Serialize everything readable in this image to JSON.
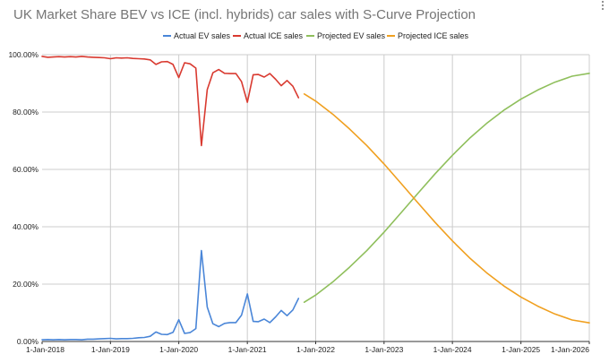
{
  "chart_data": {
    "type": "line",
    "title": "UK Market Share BEV vs ICE (incl. hybrids) car sales with S-Curve Projection",
    "xlabel": "",
    "ylabel": "",
    "x_axis": {
      "type": "date",
      "range": [
        "2018-01-01",
        "2026-01-01"
      ],
      "tick_labels": [
        "1-Jan-2018",
        "1-Jan-2019",
        "1-Jan-2020",
        "1-Jan-2021",
        "1-Jan-2022",
        "1-Jan-2023",
        "1-Jan-2024",
        "1-Jan-2025",
        "1-Jan-2026"
      ],
      "tick_dates": [
        "2018-01-01",
        "2019-01-01",
        "2020-01-01",
        "2021-01-01",
        "2022-01-01",
        "2023-01-01",
        "2024-01-01",
        "2025-01-01",
        "2026-01-01"
      ]
    },
    "y_axis": {
      "range": [
        0,
        1
      ],
      "tick_values": [
        0,
        0.2,
        0.4,
        0.6,
        0.8,
        1.0
      ],
      "tick_labels": [
        "0.00%",
        "20.00%",
        "40.00%",
        "60.00%",
        "80.00%",
        "100.00%"
      ]
    },
    "grid": true,
    "legend_position": "top",
    "series": [
      {
        "name": "Actual EV sales",
        "color": "#4a86d8",
        "points": [
          [
            "2018-01-01",
            0.006
          ],
          [
            "2018-02-01",
            0.007
          ],
          [
            "2018-03-01",
            0.006
          ],
          [
            "2018-04-01",
            0.007
          ],
          [
            "2018-05-01",
            0.006
          ],
          [
            "2018-06-01",
            0.007
          ],
          [
            "2018-07-01",
            0.007
          ],
          [
            "2018-08-01",
            0.006
          ],
          [
            "2018-09-01",
            0.008
          ],
          [
            "2018-10-01",
            0.008
          ],
          [
            "2018-11-01",
            0.009
          ],
          [
            "2018-12-01",
            0.01
          ],
          [
            "2019-01-01",
            0.011
          ],
          [
            "2019-02-01",
            0.009
          ],
          [
            "2019-03-01",
            0.01
          ],
          [
            "2019-04-01",
            0.01
          ],
          [
            "2019-05-01",
            0.011
          ],
          [
            "2019-06-01",
            0.013
          ],
          [
            "2019-07-01",
            0.014
          ],
          [
            "2019-08-01",
            0.018
          ],
          [
            "2019-09-01",
            0.033
          ],
          [
            "2019-10-01",
            0.025
          ],
          [
            "2019-11-01",
            0.024
          ],
          [
            "2019-12-01",
            0.032
          ],
          [
            "2020-01-01",
            0.076
          ],
          [
            "2020-02-01",
            0.028
          ],
          [
            "2020-03-01",
            0.031
          ],
          [
            "2020-04-01",
            0.045
          ],
          [
            "2020-05-01",
            0.317
          ],
          [
            "2020-06-01",
            0.12
          ],
          [
            "2020-07-01",
            0.062
          ],
          [
            "2020-08-01",
            0.052
          ],
          [
            "2020-09-01",
            0.063
          ],
          [
            "2020-10-01",
            0.066
          ],
          [
            "2020-11-01",
            0.066
          ],
          [
            "2020-12-01",
            0.092
          ],
          [
            "2021-01-01",
            0.166
          ],
          [
            "2021-02-01",
            0.07
          ],
          [
            "2021-03-01",
            0.069
          ],
          [
            "2021-04-01",
            0.078
          ],
          [
            "2021-05-01",
            0.066
          ],
          [
            "2021-06-01",
            0.086
          ],
          [
            "2021-07-01",
            0.108
          ],
          [
            "2021-08-01",
            0.09
          ],
          [
            "2021-09-01",
            0.11
          ],
          [
            "2021-10-01",
            0.15
          ]
        ]
      },
      {
        "name": "Actual ICE sales",
        "color": "#d93a30",
        "points": [
          [
            "2018-01-01",
            0.994
          ],
          [
            "2018-02-01",
            0.991
          ],
          [
            "2018-03-01",
            0.992
          ],
          [
            "2018-04-01",
            0.993
          ],
          [
            "2018-05-01",
            0.992
          ],
          [
            "2018-06-01",
            0.993
          ],
          [
            "2018-07-01",
            0.992
          ],
          [
            "2018-08-01",
            0.994
          ],
          [
            "2018-09-01",
            0.992
          ],
          [
            "2018-10-01",
            0.991
          ],
          [
            "2018-11-01",
            0.99
          ],
          [
            "2018-12-01",
            0.989
          ],
          [
            "2019-01-01",
            0.986
          ],
          [
            "2019-02-01",
            0.989
          ],
          [
            "2019-03-01",
            0.988
          ],
          [
            "2019-04-01",
            0.989
          ],
          [
            "2019-05-01",
            0.987
          ],
          [
            "2019-06-01",
            0.986
          ],
          [
            "2019-07-01",
            0.985
          ],
          [
            "2019-08-01",
            0.982
          ],
          [
            "2019-09-01",
            0.966
          ],
          [
            "2019-10-01",
            0.975
          ],
          [
            "2019-11-01",
            0.976
          ],
          [
            "2019-12-01",
            0.966
          ],
          [
            "2020-01-01",
            0.92
          ],
          [
            "2020-02-01",
            0.972
          ],
          [
            "2020-03-01",
            0.968
          ],
          [
            "2020-04-01",
            0.953
          ],
          [
            "2020-05-01",
            0.683
          ],
          [
            "2020-06-01",
            0.878
          ],
          [
            "2020-07-01",
            0.937
          ],
          [
            "2020-08-01",
            0.948
          ],
          [
            "2020-09-01",
            0.935
          ],
          [
            "2020-10-01",
            0.934
          ],
          [
            "2020-11-01",
            0.934
          ],
          [
            "2020-12-01",
            0.906
          ],
          [
            "2021-01-01",
            0.834
          ],
          [
            "2021-02-01",
            0.93
          ],
          [
            "2021-03-01",
            0.931
          ],
          [
            "2021-04-01",
            0.922
          ],
          [
            "2021-05-01",
            0.934
          ],
          [
            "2021-06-01",
            0.914
          ],
          [
            "2021-07-01",
            0.892
          ],
          [
            "2021-08-01",
            0.91
          ],
          [
            "2021-09-01",
            0.89
          ],
          [
            "2021-10-01",
            0.85
          ]
        ]
      },
      {
        "name": "Projected EV sales",
        "color": "#8fbf5c",
        "points": [
          [
            "2021-11-01",
            0.137
          ],
          [
            "2022-01-01",
            0.162
          ],
          [
            "2022-04-01",
            0.207
          ],
          [
            "2022-07-01",
            0.259
          ],
          [
            "2022-10-01",
            0.317
          ],
          [
            "2023-01-01",
            0.381
          ],
          [
            "2023-04-01",
            0.448
          ],
          [
            "2023-07-01",
            0.517
          ],
          [
            "2023-10-01",
            0.585
          ],
          [
            "2024-01-01",
            0.649
          ],
          [
            "2024-04-01",
            0.708
          ],
          [
            "2024-07-01",
            0.76
          ],
          [
            "2024-10-01",
            0.806
          ],
          [
            "2025-01-01",
            0.845
          ],
          [
            "2025-04-01",
            0.877
          ],
          [
            "2025-07-01",
            0.904
          ],
          [
            "2025-10-01",
            0.925
          ],
          [
            "2026-01-01",
            0.935
          ]
        ]
      },
      {
        "name": "Projected ICE sales",
        "color": "#f0a020",
        "points": [
          [
            "2021-11-01",
            0.863
          ],
          [
            "2022-01-01",
            0.838
          ],
          [
            "2022-04-01",
            0.793
          ],
          [
            "2022-07-01",
            0.741
          ],
          [
            "2022-10-01",
            0.683
          ],
          [
            "2023-01-01",
            0.619
          ],
          [
            "2023-04-01",
            0.552
          ],
          [
            "2023-07-01",
            0.483
          ],
          [
            "2023-10-01",
            0.415
          ],
          [
            "2024-01-01",
            0.351
          ],
          [
            "2024-04-01",
            0.292
          ],
          [
            "2024-07-01",
            0.24
          ],
          [
            "2024-10-01",
            0.194
          ],
          [
            "2025-01-01",
            0.155
          ],
          [
            "2025-04-01",
            0.123
          ],
          [
            "2025-07-01",
            0.096
          ],
          [
            "2025-10-01",
            0.075
          ],
          [
            "2026-01-01",
            0.065
          ]
        ]
      }
    ]
  }
}
